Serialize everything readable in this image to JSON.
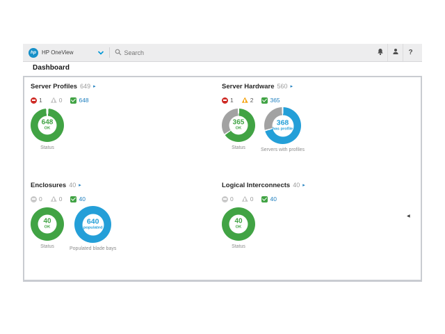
{
  "topbar": {
    "logo_text": "hp",
    "app_name": "HP OneView",
    "search_placeholder": "Search",
    "help_label": "?"
  },
  "nav": {
    "title": "Dashboard",
    "collapse_glyph": "◀"
  },
  "glyphs": {
    "panel_arrow": "▸"
  },
  "colors": {
    "green": "#41a344",
    "blue": "#249fd8",
    "gray": "#a2a2a2",
    "red": "#ce2b26",
    "yellow": "#f5a81c",
    "link": "#1f7fbf",
    "inactive": "#c9c9c9",
    "count_text": "#585858",
    "muted": "#9b9b9b"
  },
  "panels": [
    {
      "id": "server-profiles",
      "title": "Server Profiles",
      "total": "649",
      "counts": [
        {
          "type": "error",
          "value": "1",
          "active": true
        },
        {
          "type": "warning",
          "value": "0",
          "active": false
        },
        {
          "type": "ok",
          "value": "648",
          "active": true
        }
      ],
      "donuts": [
        {
          "label": "Status",
          "value": "648",
          "sublabel": "OK",
          "text_color": "green",
          "size": "primary",
          "segments": [
            {
              "color": "green",
              "from": 1.2,
              "to": 98.8
            }
          ]
        }
      ]
    },
    {
      "id": "server-hardware",
      "title": "Server Hardware",
      "total": "560",
      "counts": [
        {
          "type": "error",
          "value": "1",
          "active": true
        },
        {
          "type": "warning",
          "value": "2",
          "active": true
        },
        {
          "type": "ok",
          "value": "365",
          "active": true
        }
      ],
      "donuts": [
        {
          "label": "Status",
          "value": "365",
          "sublabel": "OK",
          "text_color": "green",
          "size": "primary",
          "segments": [
            {
              "color": "green",
              "from": 0.7,
              "to": 65
            },
            {
              "color": "gray",
              "from": 66.2,
              "to": 99.3
            }
          ]
        },
        {
          "label": "Servers with profiles",
          "value": "368",
          "sublabel": "has profile",
          "text_color": "blue",
          "size": "secondary",
          "segments": [
            {
              "color": "blue",
              "from": 0.7,
              "to": 70
            },
            {
              "color": "gray",
              "from": 71.2,
              "to": 99.3
            }
          ]
        }
      ]
    },
    {
      "id": "enclosures",
      "title": "Enclosures",
      "total": "40",
      "counts": [
        {
          "type": "error",
          "value": "0",
          "active": false
        },
        {
          "type": "warning",
          "value": "0",
          "active": false
        },
        {
          "type": "ok",
          "value": "40",
          "active": true
        }
      ],
      "donuts": [
        {
          "label": "Status",
          "value": "40",
          "sublabel": "OK",
          "text_color": "green",
          "size": "primary",
          "segments": [
            {
              "color": "green",
              "from": 0,
              "to": 100
            }
          ]
        },
        {
          "label": "Populated blade bays",
          "value": "640",
          "sublabel": "populated",
          "text_color": "blue",
          "size": "secondary",
          "segments": [
            {
              "color": "blue",
              "from": 0,
              "to": 100
            }
          ]
        }
      ]
    },
    {
      "id": "logical-interconnects",
      "title": "Logical Interconnects",
      "total": "40",
      "counts": [
        {
          "type": "error",
          "value": "0",
          "active": false
        },
        {
          "type": "warning",
          "value": "0",
          "active": false
        },
        {
          "type": "ok",
          "value": "40",
          "active": true
        }
      ],
      "donuts": [
        {
          "label": "Status",
          "value": "40",
          "sublabel": "OK",
          "text_color": "green",
          "size": "primary",
          "segments": [
            {
              "color": "green",
              "from": 0,
              "to": 100
            }
          ]
        }
      ]
    }
  ]
}
